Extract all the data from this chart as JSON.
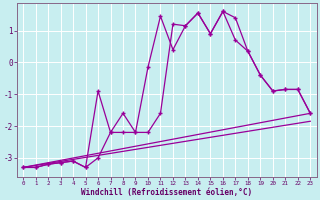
{
  "xlabel": "Windchill (Refroidissement éolien,°C)",
  "bg_color": "#c8eef0",
  "grid_color": "#aadddd",
  "line_color": "#990099",
  "markersize": 2.5,
  "linewidth": 0.9,
  "xlim": [
    -0.5,
    23.5
  ],
  "ylim": [
    -3.6,
    1.85
  ],
  "yticks": [
    1,
    0,
    -1,
    -2,
    -3
  ],
  "xticks": [
    0,
    1,
    2,
    3,
    4,
    5,
    6,
    7,
    8,
    9,
    10,
    11,
    12,
    13,
    14,
    15,
    16,
    17,
    18,
    19,
    20,
    21,
    22,
    23
  ],
  "series1_x": [
    0,
    1,
    2,
    3,
    4,
    5,
    6,
    7,
    8,
    9,
    10,
    11,
    12,
    13,
    14,
    15,
    16,
    17,
    18,
    19,
    20,
    21,
    22,
    23
  ],
  "series1_y": [
    -3.3,
    -3.3,
    -3.2,
    -3.15,
    -3.1,
    -3.3,
    -0.9,
    -2.2,
    -1.6,
    -2.2,
    -0.15,
    1.45,
    0.4,
    1.15,
    1.55,
    0.9,
    1.6,
    0.7,
    0.35,
    -0.4,
    -0.9,
    -0.85,
    -0.85,
    -1.6
  ],
  "series2_x": [
    0,
    1,
    2,
    3,
    4,
    5,
    6,
    7,
    8,
    9,
    10,
    11,
    12,
    13,
    14,
    15,
    16,
    17,
    18,
    19,
    20,
    21,
    22,
    23
  ],
  "series2_y": [
    -3.3,
    -3.3,
    -3.2,
    -3.15,
    -3.1,
    -3.3,
    -3.0,
    -2.2,
    -2.2,
    -2.2,
    -2.2,
    -1.6,
    1.2,
    1.15,
    1.55,
    0.9,
    1.6,
    1.4,
    0.35,
    -0.4,
    -0.9,
    -0.85,
    -0.85,
    -1.6
  ],
  "line3_x": [
    0,
    23
  ],
  "line3_y": [
    -3.3,
    -1.6
  ],
  "line4_x": [
    0,
    23
  ],
  "line4_y": [
    -3.3,
    -1.85
  ]
}
